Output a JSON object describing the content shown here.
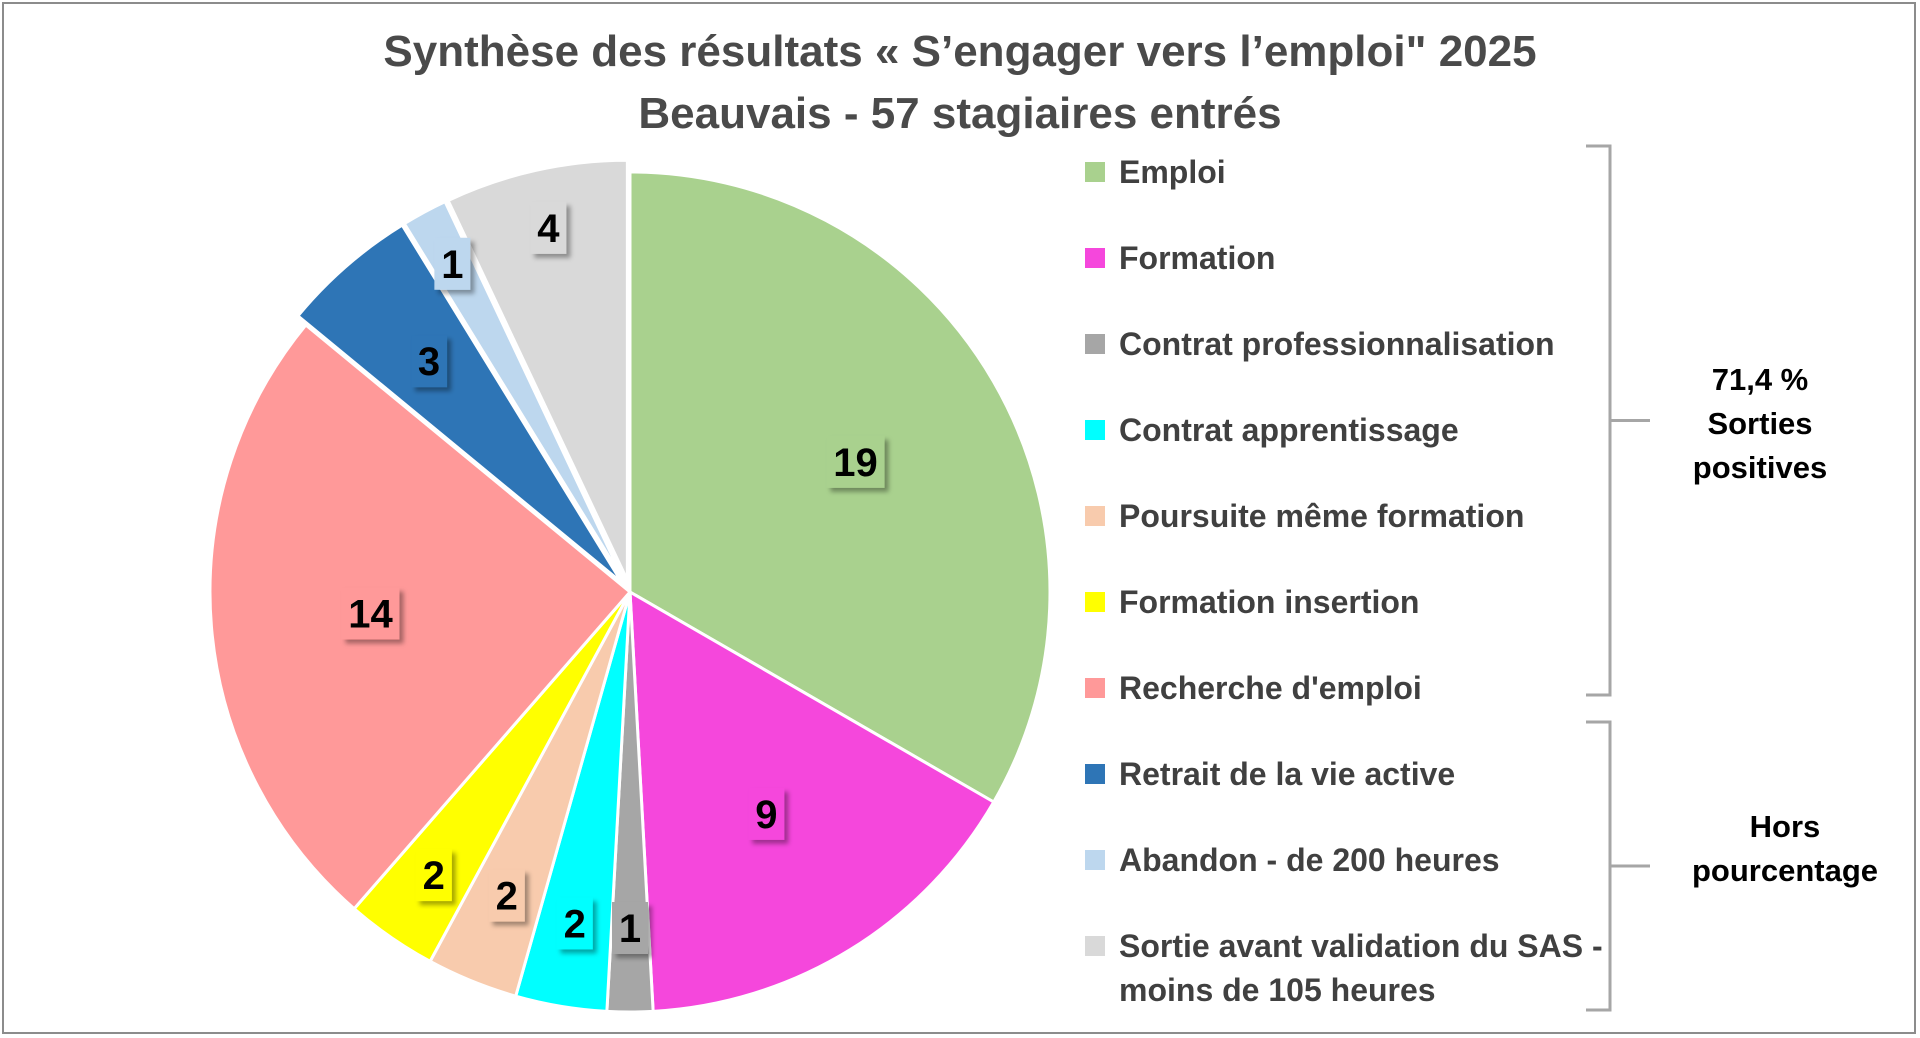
{
  "chart_data": {
    "type": "pie",
    "title_line1": "Synthèse des résultats « S’engager vers l’emploi\" 2025",
    "title_line2": "Beauvais - 57 stagiaires entrés",
    "slices": [
      {
        "label": "Emploi",
        "value": 19,
        "color": "#a9d18e"
      },
      {
        "label": "Formation",
        "value": 9,
        "color": "#f547dc"
      },
      {
        "label": "Contrat professionnalisation",
        "value": 1,
        "color": "#a6a6a6"
      },
      {
        "label": "Contrat apprentissage",
        "value": 2,
        "color": "#00ffff"
      },
      {
        "label": "Poursuite même formation",
        "value": 2,
        "color": "#f8cbad"
      },
      {
        "label": "Formation insertion",
        "value": 2,
        "color": "#ffff00"
      },
      {
        "label": "Recherche d'emploi",
        "value": 14,
        "color": "#ff9999"
      },
      {
        "label": "Retrait de la vie active",
        "value": 3,
        "color": "#2e75b6"
      },
      {
        "label": "Abandon - de 200 heures",
        "value": 1,
        "color": "#bdd7ee"
      },
      {
        "label": "Sortie avant validation du SAS - moins de 105 heures",
        "value": 4,
        "color": "#d9d9d9"
      }
    ],
    "legend_position": "right",
    "groups": [
      {
        "lines": [
          "71,4 %",
          "Sorties",
          "positives"
        ]
      },
      {
        "lines": [
          "Hors",
          "pourcentage"
        ]
      }
    ]
  }
}
